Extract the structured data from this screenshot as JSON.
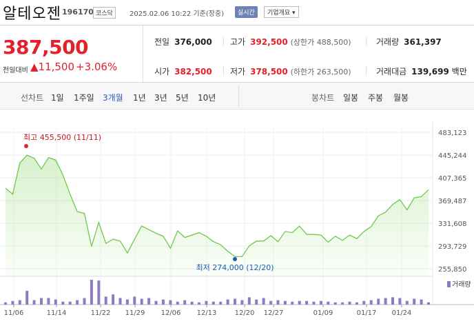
{
  "header": {
    "title": "알테오젠",
    "code": "196170",
    "market": "코스닥",
    "as_of": "2025.02.06 10:22 기준(장중)",
    "realtime": "실시간",
    "overview": "기업개요 ▾"
  },
  "price": {
    "current": "387,500",
    "change_label": "전일대비",
    "change_amount": "▲11,500",
    "change_pct": "+3.06%"
  },
  "stats": {
    "prev_label": "전일",
    "prev": "376,000",
    "open_label": "시가",
    "open": "382,500",
    "high_label": "고가",
    "high": "392,500",
    "upper_limit": "(상한가 488,500)",
    "low_label": "저가",
    "low": "378,500",
    "lower_limit": "(하한가 263,500)",
    "volume_label": "거래량",
    "volume": "361,397",
    "amount_label": "거래대금",
    "amount": "139,699",
    "amount_unit": "백만"
  },
  "periods": {
    "line_label": "선차트",
    "items": [
      "1일",
      "1주일",
      "3개월",
      "1년",
      "3년",
      "5년",
      "10년"
    ],
    "selected": "3개월",
    "candle_label": "봉차트",
    "candles": [
      "일봉",
      "주봉",
      "월봉"
    ]
  },
  "colors": {
    "up": "#e4212b",
    "down": "#1a5fb4",
    "line": "#6cc94a",
    "volume": "#8d7cc4"
  },
  "chart_data": {
    "type": "line",
    "y_ticks": [
      "483,123",
      "445,244",
      "407,365",
      "369,487",
      "331,608",
      "293,729",
      "255,850"
    ],
    "ylim": [
      255850,
      483123
    ],
    "x_ticks": [
      "11/06",
      "11/14",
      "11/22",
      "11/29",
      "12/06",
      "12/13",
      "12/20",
      "12/27",
      "01/09",
      "01/17",
      "01/24"
    ],
    "max_label": "최고 455,500 (11/11)",
    "min_label": "최저 274,000 (12/20)",
    "volume_legend": "거래량",
    "prices": [
      390000,
      380000,
      432000,
      445000,
      440000,
      422000,
      441000,
      437000,
      412000,
      380000,
      351000,
      348000,
      293000,
      333000,
      298000,
      305000,
      302000,
      282000,
      305000,
      327000,
      321000,
      315000,
      310000,
      290000,
      319000,
      308000,
      312000,
      316000,
      310000,
      301000,
      296000,
      285000,
      276000,
      276000,
      294000,
      302000,
      302000,
      311000,
      301000,
      318000,
      316000,
      327000,
      313000,
      313000,
      312000,
      300000,
      310000,
      303000,
      312000,
      306000,
      318000,
      326000,
      344000,
      350000,
      363000,
      371000,
      354000,
      374000,
      376000,
      387500
    ],
    "volumes": [
      3,
      5,
      6,
      19,
      6,
      9,
      9,
      7,
      4,
      4,
      6,
      9,
      34,
      33,
      11,
      14,
      9,
      7,
      11,
      8,
      9,
      5,
      7,
      6,
      4,
      6,
      4,
      3,
      5,
      4,
      4,
      7,
      8,
      6,
      10,
      7,
      9,
      5,
      6,
      5,
      4,
      5,
      5,
      4,
      5,
      4,
      3,
      3,
      4,
      3,
      5,
      6,
      8,
      9,
      10,
      9,
      5,
      8,
      7,
      3
    ]
  }
}
